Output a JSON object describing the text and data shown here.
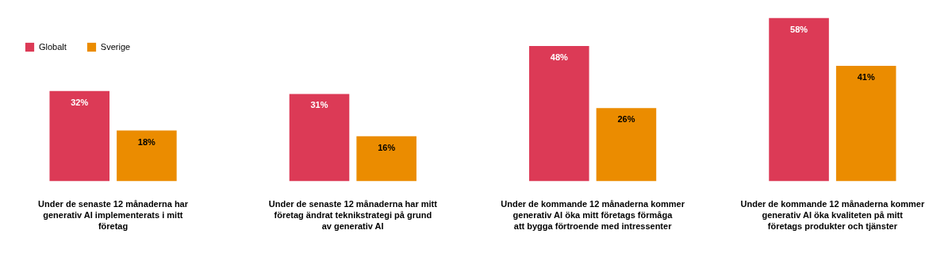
{
  "chart_data": {
    "type": "bar",
    "categories": [
      "Under de senaste 12 månaderna har generativ AI implementerats i mitt företag",
      "Under de senaste 12 månaderna har mitt företag ändrat teknikstrategi på grund av generativ AI",
      "Under de kommande 12 månaderna kommer generativ AI öka mitt företags förmåga att bygga förtroende med intressenter",
      "Under de kommande 12 månaderna kommer generativ AI öka kvaliteten på mitt företags produkter och tjänster"
    ],
    "series": [
      {
        "name": "Globalt",
        "color": "#dc3a56",
        "values": [
          32,
          31,
          48,
          58
        ],
        "value_labels": [
          "32%",
          "31%",
          "48%",
          "58%"
        ]
      },
      {
        "name": "Sverige",
        "color": "#eb8c00",
        "values": [
          18,
          16,
          26,
          41
        ],
        "value_labels": [
          "18%",
          "16%",
          "26%",
          "41%"
        ]
      }
    ],
    "legend": "top left",
    "grid": false
  }
}
